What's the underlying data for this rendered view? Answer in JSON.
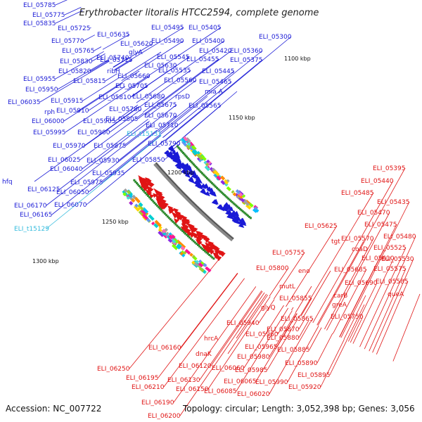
{
  "title": "Erythrobacter litoralis HTCC2594, complete genome",
  "accession": "Accession: NC_007722",
  "summary": "Topology: circular; Length: 3,052,398 bp; Genes: 3,056",
  "colors": {
    "forward": "#1a1ad6",
    "reverse": "#e01414",
    "rna": "#33bbdd",
    "ring": "#888888",
    "ticks": "#2e8b2e"
  },
  "ticks": [
    {
      "label": "1100 kbp"
    },
    {
      "label": "1150 kbp"
    },
    {
      "label": "1200 kbp"
    },
    {
      "label": "1250 kbp"
    },
    {
      "label": "1300 kbp"
    }
  ],
  "forward_labels": [
    {
      "text": "ELI_05785"
    },
    {
      "text": "ELI_05775"
    },
    {
      "text": "ELI_05835"
    },
    {
      "text": "ELI_05725"
    },
    {
      "text": "ELI_05635"
    },
    {
      "text": "ELI_05495"
    },
    {
      "text": "ELI_05405"
    },
    {
      "text": "ELI_05770"
    },
    {
      "text": "ELI_05620"
    },
    {
      "text": "ELI_05490"
    },
    {
      "text": "ELI_05400"
    },
    {
      "text": "ELI_05300"
    },
    {
      "text": "ELI_05765"
    },
    {
      "text": "ELI_05740"
    },
    {
      "text": "glyA"
    },
    {
      "text": "ELI_05420"
    },
    {
      "text": "ELI_05360"
    },
    {
      "text": "ELI_05545"
    },
    {
      "text": "ELI_05455"
    },
    {
      "text": "ELI_05375"
    },
    {
      "text": "ELI_05830"
    },
    {
      "text": "ELI_05715"
    },
    {
      "text": "ELI_05630"
    },
    {
      "text": "ELI_05820"
    },
    {
      "text": "ribH"
    },
    {
      "text": "ELI_05660"
    },
    {
      "text": "ELI_05535"
    },
    {
      "text": "ELI_05445"
    },
    {
      "text": "ELI_05955"
    },
    {
      "text": "ELI_05815"
    },
    {
      "text": "ELI_05560"
    },
    {
      "text": "ELI_05465"
    },
    {
      "text": "ELI_05950"
    },
    {
      "text": "ELI_05705"
    },
    {
      "text": "mia A"
    },
    {
      "text": "ELI_05810"
    },
    {
      "text": "ELI_05680"
    },
    {
      "text": "rpsD"
    },
    {
      "text": "ELI_06035"
    },
    {
      "text": "ELI_05915"
    },
    {
      "text": "ELI_05675"
    },
    {
      "text": "ELI_05565"
    },
    {
      "text": "rph"
    },
    {
      "text": "ELI_05910"
    },
    {
      "text": "ELI_05780"
    },
    {
      "text": "ELI_05670"
    },
    {
      "text": "ELI_06000"
    },
    {
      "text": "ELI_05905"
    },
    {
      "text": "ELI_05805"
    },
    {
      "text": "ELI_05710"
    },
    {
      "text": "ELI_05995"
    },
    {
      "text": "ELI_05900"
    },
    {
      "text": "ELI_05790"
    },
    {
      "text": "ELI_05970"
    },
    {
      "text": "ELI_05875"
    },
    {
      "text": "ELI_06025"
    },
    {
      "text": "ELI_05930"
    },
    {
      "text": "ELI_05850"
    },
    {
      "text": "ELI_06040"
    },
    {
      "text": "ELI_05935"
    },
    {
      "text": "ELI_05975"
    },
    {
      "text": "ELI_06125"
    },
    {
      "text": "ELI_06050"
    },
    {
      "text": "hfq"
    },
    {
      "text": "ELI_06170"
    },
    {
      "text": "ELI_06070"
    },
    {
      "text": "ELI_06165"
    }
  ],
  "rna_labels": [
    {
      "text": "ELI_t15131"
    },
    {
      "text": "ELI_t15129"
    }
  ],
  "reverse_labels": [
    {
      "text": "ELI_05395"
    },
    {
      "text": "ELI_05440"
    },
    {
      "text": "ELI_05485"
    },
    {
      "text": "ELI_05435"
    },
    {
      "text": "ELI_05470"
    },
    {
      "text": "ELI_05475"
    },
    {
      "text": "ELI_05480"
    },
    {
      "text": "ELI_05625"
    },
    {
      "text": "ELI_05570"
    },
    {
      "text": "tgt"
    },
    {
      "text": "coaD"
    },
    {
      "text": "ELI_05525"
    },
    {
      "text": "ELI_05610"
    },
    {
      "text": "ELI_05530"
    },
    {
      "text": "ELI_05755"
    },
    {
      "text": "ELI_05575"
    },
    {
      "text": "ELI_05800"
    },
    {
      "text": "eno"
    },
    {
      "text": "ELI_05685"
    },
    {
      "text": "ELI_05585"
    },
    {
      "text": "ELI_05690"
    },
    {
      "text": "mutL"
    },
    {
      "text": "queA"
    },
    {
      "text": "ELI_05855"
    },
    {
      "text": "carB"
    },
    {
      "text": "glyQ"
    },
    {
      "text": "greA"
    },
    {
      "text": "ELI_05865"
    },
    {
      "text": "ELI_05750"
    },
    {
      "text": "ELI_05940"
    },
    {
      "text": "ELI_05870"
    },
    {
      "text": "ELI_05960"
    },
    {
      "text": "ELI_05880"
    },
    {
      "text": "hrcA"
    },
    {
      "text": "ELI_05965"
    },
    {
      "text": "ELI_05885"
    },
    {
      "text": "ELI_06160"
    },
    {
      "text": "dnaK"
    },
    {
      "text": "ELI_05980"
    },
    {
      "text": "ELI_05890"
    },
    {
      "text": "ELI_06120"
    },
    {
      "text": "ELI_06060"
    },
    {
      "text": "ELI_05985"
    },
    {
      "text": "ELI_05895"
    },
    {
      "text": "ELI_06250"
    },
    {
      "text": "ELI_06195"
    },
    {
      "text": "ELI_06130"
    },
    {
      "text": "ELI_06065"
    },
    {
      "text": "ELI_05990"
    },
    {
      "text": "ELI_05920"
    },
    {
      "text": "ELI_06210"
    },
    {
      "text": "ELI_06150"
    },
    {
      "text": "ELI_06085"
    },
    {
      "text": "ELI_06020"
    },
    {
      "text": "ELI_06190"
    },
    {
      "text": "ELI_06200"
    }
  ]
}
